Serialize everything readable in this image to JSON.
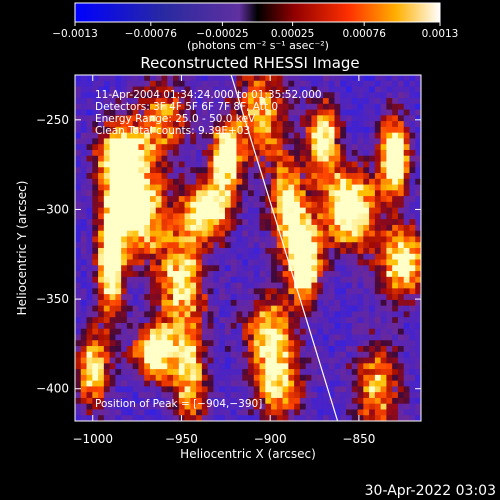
{
  "chart_data": {
    "type": "heatmap",
    "title": "Reconstructed RHESSI Image",
    "xlabel": "Heliocentric X (arcsec)",
    "ylabel": "Heliocentric Y (arcsec)",
    "xlim": [
      -1010,
      -815
    ],
    "ylim": [
      -418,
      -225
    ],
    "x_ticks": [
      -1000,
      -950,
      -900,
      -850
    ],
    "x_tick_labels": [
      "−1000",
      "−950",
      "−900",
      "−850"
    ],
    "y_ticks": [
      -250,
      -300,
      -350,
      -400
    ],
    "y_tick_labels": [
      "−250",
      "−300",
      "−350",
      "−400"
    ],
    "colorbar": {
      "range": [
        -0.0013,
        0.0013
      ],
      "ticks": [
        -0.0013,
        -0.00076,
        -0.00025,
        0.00025,
        0.00076,
        0.0013
      ],
      "tick_labels": [
        "−0.0013",
        "−0.00076",
        "−0.00025",
        "0.00025",
        "0.00076",
        "0.0013"
      ],
      "unit_label": "(photons cm⁻² s⁻¹ asec⁻²)"
    },
    "annotations": [
      "11-Apr-2004 01:34:24.000 to 01:35:52.000",
      "Detectors: 3F 4F 5F 6F 7F 8F, Att 0",
      "Energy Range: 25.0 - 50.0 keV",
      "Clean     Total counts: 9.39E+03"
    ],
    "peak_label": "Position of Peak = [−904,−390]",
    "peak_position": [
      -904,
      -390
    ],
    "limb_line": {
      "x": [
        -922,
        -862
      ],
      "y": [
        -225,
        -418
      ]
    },
    "timestamp": "30-Apr-2022 03:03",
    "colors": {
      "background": "#000000",
      "text": "#ffffff"
    }
  }
}
